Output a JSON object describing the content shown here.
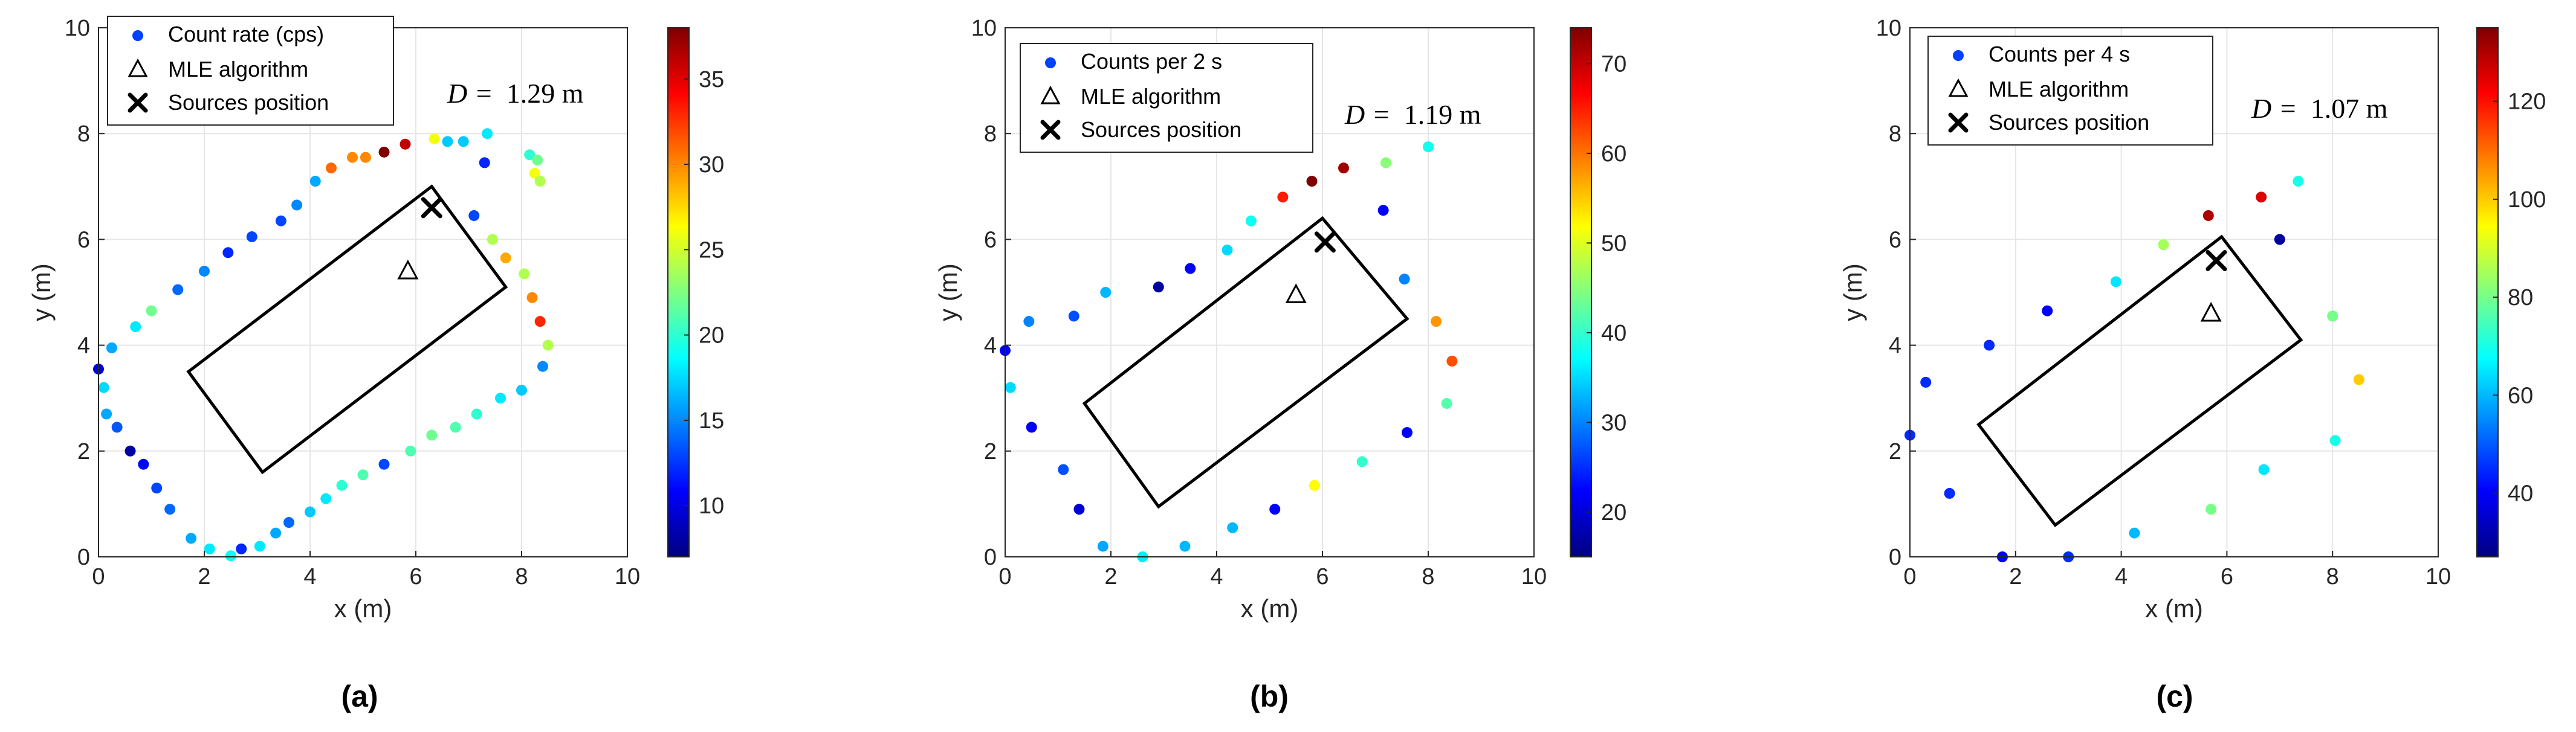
{
  "chart_data": [
    {
      "type": "scatter",
      "panel_label": "(a)",
      "xlabel": "x (m)",
      "ylabel": "y (m)",
      "xlim": [
        0,
        10
      ],
      "ylim": [
        0,
        10
      ],
      "xticks": [
        0,
        2,
        4,
        6,
        8,
        10
      ],
      "yticks": [
        0,
        2,
        4,
        6,
        8,
        10
      ],
      "grid": true,
      "legend": {
        "placement": "top-left",
        "entries": [
          "Count rate (cps)",
          "MLE algorithm",
          "Sources position"
        ]
      },
      "annotation": {
        "prefix": "D =",
        "value": "1.29 m"
      },
      "colorbar": {
        "min": 7,
        "max": 38,
        "ticks": [
          10,
          15,
          20,
          25,
          30,
          35
        ],
        "colormap": "jet"
      },
      "rectangle": [
        [
          1.7,
          3.5
        ],
        [
          6.3,
          7.0
        ],
        [
          7.7,
          5.1
        ],
        [
          3.1,
          1.6
        ]
      ],
      "mle": [
        5.85,
        5.4
      ],
      "source": [
        6.3,
        6.6
      ],
      "points": [
        [
          0,
          3.55,
          10
        ],
        [
          0.1,
          3.2,
          17.5
        ],
        [
          0.15,
          2.7,
          16
        ],
        [
          0.35,
          2.45,
          13.5
        ],
        [
          0.6,
          2.0,
          8
        ],
        [
          0.85,
          1.75,
          11
        ],
        [
          1.1,
          1.3,
          13
        ],
        [
          1.35,
          0.9,
          14
        ],
        [
          1.75,
          0.35,
          16
        ],
        [
          2.1,
          0.15,
          18
        ],
        [
          2.5,
          0.02,
          19
        ],
        [
          2.7,
          0.15,
          12
        ],
        [
          3.05,
          0.2,
          18
        ],
        [
          3.35,
          0.45,
          16
        ],
        [
          3.6,
          0.65,
          14
        ],
        [
          4.0,
          0.85,
          17
        ],
        [
          4.3,
          1.1,
          18
        ],
        [
          4.6,
          1.35,
          20
        ],
        [
          5.0,
          1.55,
          21
        ],
        [
          5.4,
          1.75,
          13
        ],
        [
          5.9,
          2.0,
          21
        ],
        [
          6.3,
          2.3,
          22
        ],
        [
          6.75,
          2.45,
          21
        ],
        [
          7.15,
          2.7,
          20
        ],
        [
          7.6,
          3.0,
          18
        ],
        [
          8.0,
          3.15,
          17
        ],
        [
          8.4,
          3.6,
          15
        ],
        [
          8.5,
          4.0,
          24
        ],
        [
          8.35,
          4.45,
          33
        ],
        [
          8.2,
          4.9,
          30
        ],
        [
          8.05,
          5.35,
          24
        ],
        [
          7.7,
          5.65,
          29
        ],
        [
          7.45,
          6.0,
          24
        ],
        [
          7.1,
          6.45,
          13
        ],
        [
          7.3,
          7.45,
          12
        ],
        [
          7.35,
          8.0,
          18
        ],
        [
          6.9,
          7.85,
          17
        ],
        [
          6.6,
          7.85,
          17
        ],
        [
          6.35,
          7.9,
          26
        ],
        [
          5.8,
          7.8,
          36
        ],
        [
          5.4,
          7.65,
          38
        ],
        [
          5.05,
          7.55,
          30
        ],
        [
          4.8,
          7.55,
          30
        ],
        [
          4.4,
          7.35,
          31
        ],
        [
          4.1,
          7.1,
          16
        ],
        [
          3.75,
          6.65,
          15
        ],
        [
          3.45,
          6.35,
          13
        ],
        [
          2.9,
          6.05,
          13
        ],
        [
          2.45,
          5.75,
          12
        ],
        [
          2.0,
          5.4,
          15
        ],
        [
          1.5,
          5.05,
          14
        ],
        [
          1.0,
          4.65,
          22
        ],
        [
          0.7,
          4.35,
          18
        ],
        [
          0.25,
          3.95,
          16
        ],
        [
          8.15,
          7.6,
          20
        ],
        [
          8.3,
          7.5,
          22
        ],
        [
          8.25,
          7.25,
          26
        ],
        [
          8.35,
          7.1,
          24
        ]
      ]
    },
    {
      "type": "scatter",
      "panel_label": "(b)",
      "xlabel": "x (m)",
      "ylabel": "y (m)",
      "xlim": [
        0,
        10
      ],
      "ylim": [
        0,
        10
      ],
      "xticks": [
        0,
        2,
        4,
        6,
        8,
        10
      ],
      "yticks": [
        0,
        2,
        4,
        6,
        8,
        10
      ],
      "grid": true,
      "legend": {
        "placement": "top-left",
        "entries": [
          "Counts per 2 s",
          "MLE algorithm",
          "Sources position"
        ]
      },
      "annotation": {
        "prefix": "D =",
        "value": "1.19 m"
      },
      "colorbar": {
        "min": 15,
        "max": 74,
        "ticks": [
          20,
          30,
          40,
          50,
          60,
          70
        ],
        "colormap": "jet"
      },
      "rectangle": [
        [
          1.5,
          2.9
        ],
        [
          6.0,
          6.4
        ],
        [
          7.6,
          4.5
        ],
        [
          2.9,
          0.95
        ]
      ],
      "mle": [
        5.5,
        4.95
      ],
      "source": [
        6.05,
        5.95
      ],
      "points": [
        [
          0,
          3.9,
          22
        ],
        [
          0.1,
          3.2,
          35
        ],
        [
          0.5,
          2.45,
          22
        ],
        [
          0.45,
          4.45,
          30
        ],
        [
          1.1,
          1.65,
          27
        ],
        [
          1.4,
          0.9,
          20
        ],
        [
          1.3,
          4.55,
          27
        ],
        [
          1.85,
          0.2,
          32
        ],
        [
          1.9,
          5.0,
          33
        ],
        [
          2.6,
          0.0,
          36
        ],
        [
          2.9,
          5.1,
          17
        ],
        [
          3.4,
          0.2,
          33
        ],
        [
          3.5,
          5.45,
          22
        ],
        [
          4.3,
          0.55,
          33
        ],
        [
          4.2,
          5.8,
          35
        ],
        [
          5.1,
          0.9,
          22
        ],
        [
          4.65,
          6.35,
          38
        ],
        [
          5.25,
          6.8,
          65
        ],
        [
          5.8,
          7.1,
          74
        ],
        [
          5.85,
          1.35,
          52
        ],
        [
          6.4,
          7.35,
          72
        ],
        [
          6.75,
          1.8,
          40
        ],
        [
          7.15,
          6.55,
          22
        ],
        [
          7.2,
          7.45,
          45
        ],
        [
          7.6,
          2.35,
          22
        ],
        [
          7.55,
          5.25,
          30
        ],
        [
          8.0,
          7.75,
          38
        ],
        [
          8.15,
          4.45,
          58
        ],
        [
          8.35,
          2.9,
          42
        ],
        [
          8.45,
          3.7,
          62
        ]
      ]
    },
    {
      "type": "scatter",
      "panel_label": "(c)",
      "xlabel": "x (m)",
      "ylabel": "y (m)",
      "xlim": [
        0,
        10
      ],
      "ylim": [
        0,
        10
      ],
      "xticks": [
        0,
        2,
        4,
        6,
        8,
        10
      ],
      "yticks": [
        0,
        2,
        4,
        6,
        8,
        10
      ],
      "grid": true,
      "legend": {
        "placement": "top-left",
        "entries": [
          "Counts per 4 s",
          "MLE algorithm",
          "Sources position"
        ]
      },
      "annotation": {
        "prefix": "D =",
        "value": "1.07 m"
      },
      "colorbar": {
        "min": 27,
        "max": 135,
        "ticks": [
          40,
          60,
          80,
          100,
          120
        ],
        "colormap": "jet"
      },
      "rectangle": [
        [
          1.3,
          2.5
        ],
        [
          5.9,
          6.05
        ],
        [
          7.4,
          4.1
        ],
        [
          2.75,
          0.6
        ]
      ],
      "mle": [
        5.7,
        4.6
      ],
      "source": [
        5.8,
        5.6
      ],
      "points": [
        [
          0,
          2.3,
          45
        ],
        [
          0.3,
          3.3,
          45
        ],
        [
          0.75,
          1.2,
          45
        ],
        [
          1.5,
          4.0,
          45
        ],
        [
          1.75,
          0.0,
          40
        ],
        [
          2.6,
          4.65,
          40
        ],
        [
          3.0,
          0.0,
          45
        ],
        [
          3.9,
          5.2,
          65
        ],
        [
          4.25,
          0.45,
          60
        ],
        [
          4.8,
          5.9,
          85
        ],
        [
          5.65,
          6.45,
          130
        ],
        [
          5.7,
          0.9,
          80
        ],
        [
          6.65,
          6.8,
          125
        ],
        [
          6.7,
          1.65,
          65
        ],
        [
          7.0,
          6.0,
          30
        ],
        [
          7.35,
          7.1,
          70
        ],
        [
          8.0,
          4.55,
          80
        ],
        [
          8.05,
          2.2,
          70
        ],
        [
          8.5,
          3.35,
          100
        ]
      ]
    }
  ]
}
